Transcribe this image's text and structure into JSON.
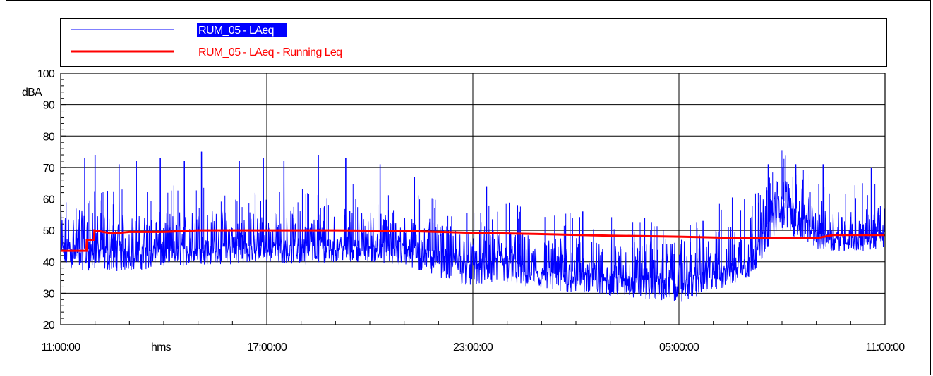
{
  "chart_data": {
    "type": "line",
    "ylabel": "dBA",
    "xlabel": "hms",
    "ylim": [
      20,
      100
    ],
    "yticks": [
      "20",
      "30",
      "40",
      "50",
      "60",
      "70",
      "80",
      "90",
      "100"
    ],
    "xticks": [
      "11:00:00",
      "17:00:00",
      "23:00:00",
      "05:00:00",
      "11:00:00"
    ],
    "x_range_hours": [
      0,
      24
    ],
    "grid": true,
    "legend_placement": "top",
    "series": [
      {
        "name": "RUM_05 - LAeq",
        "color": "#0000ff",
        "x_hours": [
          0,
          1,
          2,
          3,
          4,
          5,
          6,
          7,
          8,
          9,
          10,
          11,
          12,
          13,
          14,
          15,
          16,
          17,
          18,
          19,
          20,
          21,
          22,
          23,
          24
        ],
        "median": [
          44,
          44,
          43,
          44,
          44,
          45,
          45,
          45,
          45,
          45,
          45,
          43,
          39,
          41,
          36,
          37,
          35,
          35,
          34,
          37,
          40,
          60,
          49,
          48,
          49
        ],
        "low": [
          38,
          37,
          37,
          38,
          39,
          39,
          40,
          39,
          40,
          40,
          38,
          35,
          32,
          33,
          30,
          30,
          29,
          28,
          27,
          30,
          34,
          50,
          44,
          43,
          44
        ],
        "high": [
          57,
          56,
          55,
          56,
          57,
          57,
          56,
          57,
          57,
          57,
          55,
          52,
          50,
          51,
          48,
          48,
          47,
          47,
          46,
          50,
          55,
          68,
          60,
          57,
          58
        ],
        "spikes": [
          [
            0.7,
            73
          ],
          [
            1.0,
            74
          ],
          [
            1.7,
            71
          ],
          [
            2.2,
            72
          ],
          [
            2.9,
            73
          ],
          [
            3.6,
            72
          ],
          [
            4.1,
            75
          ],
          [
            5.2,
            72
          ],
          [
            5.9,
            73
          ],
          [
            6.5,
            72
          ],
          [
            7.5,
            74
          ],
          [
            8.3,
            73
          ],
          [
            9.3,
            71
          ],
          [
            10.3,
            67
          ],
          [
            12.4,
            64
          ],
          [
            13.3,
            58
          ],
          [
            15.2,
            56
          ],
          [
            17.0,
            54
          ],
          [
            18.7,
            53
          ],
          [
            20.6,
            71
          ],
          [
            21.4,
            71
          ],
          [
            22.2,
            71
          ],
          [
            23.6,
            70
          ]
        ]
      },
      {
        "name": "RUM_05 - LAeq - Running Leq",
        "color": "#ff0000",
        "x_hours": [
          0,
          0.75,
          0.76,
          0.97,
          0.98,
          1.5,
          2,
          3,
          4,
          5,
          6,
          8,
          10,
          11,
          12,
          14,
          16,
          18,
          20,
          22,
          22.5,
          24
        ],
        "values": [
          43.5,
          43.5,
          47,
          47,
          50,
          49,
          49.5,
          49.5,
          50,
          50,
          50,
          50,
          49.8,
          49.5,
          49.2,
          48.8,
          48.3,
          48,
          47.5,
          47.5,
          48.5,
          48.5
        ]
      }
    ]
  }
}
